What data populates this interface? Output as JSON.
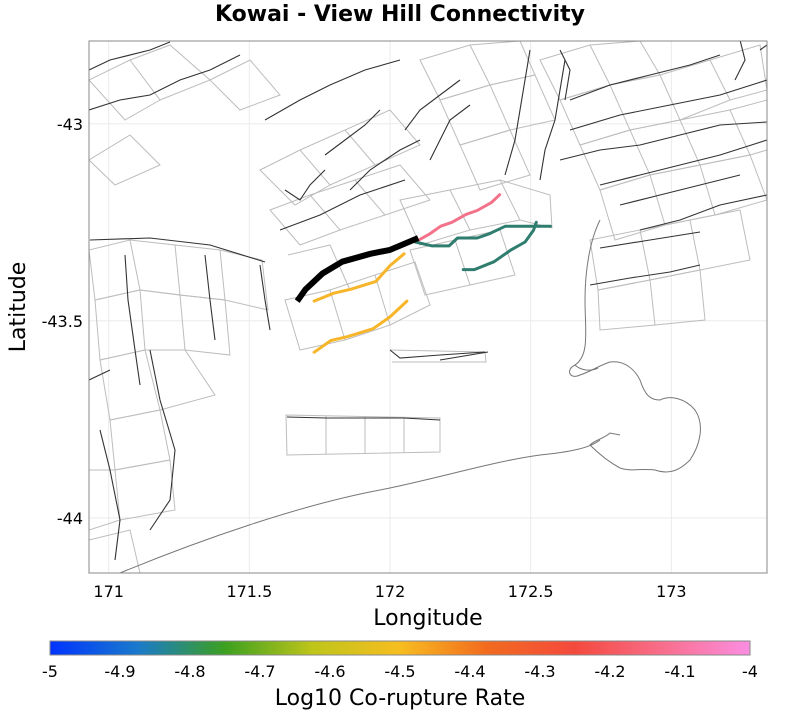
{
  "title": "Kowai - View Hill Connectivity",
  "map": {
    "xlabel": "Longitude",
    "ylabel": "Latitude",
    "xlim": [
      170.93,
      173.34
    ],
    "ylim": [
      -44.14,
      -42.79
    ],
    "x_ticks": [
      171,
      171.5,
      172,
      172.5,
      173
    ],
    "x_tick_labels": [
      "171",
      "171.5",
      "172",
      "172.5",
      "173"
    ],
    "y_ticks": [
      -43,
      -43.5,
      -44
    ],
    "y_tick_labels": [
      "-43",
      "-43.5",
      "-44"
    ],
    "grid": true,
    "colors": {
      "fault_trace": "#333333",
      "fault_outline": "#bdbdbd",
      "coastline": "#777777",
      "source_rupture": "#000000"
    }
  },
  "colorbar": {
    "label": "Log10 Co-rupture Rate",
    "min": -5,
    "max": -4,
    "ticks": [
      -5,
      -4.9,
      -4.8,
      -4.7,
      -4.6,
      -4.5,
      -4.4,
      -4.3,
      -4.2,
      -4.1,
      -4
    ],
    "tick_labels": [
      "-5",
      "-4.9",
      "-4.8",
      "-4.7",
      "-4.6",
      "-4.5",
      "-4.4",
      "-4.3",
      "-4.2",
      "-4.1",
      "-4"
    ],
    "stops": [
      "#0033ff",
      "#1a7acc",
      "#3ca020",
      "#bfc51a",
      "#f7bd20",
      "#f26a1e",
      "#f44a3e",
      "#f86e8c",
      "#fa8ee2"
    ]
  },
  "source_fault": {
    "name": "Kowai - View Hill",
    "points": [
      [
        171.67,
        -43.45
      ],
      [
        171.7,
        -43.42
      ],
      [
        171.76,
        -43.38
      ],
      [
        171.83,
        -43.35
      ],
      [
        171.93,
        -43.33
      ],
      [
        172.0,
        -43.32
      ],
      [
        172.1,
        -43.29
      ]
    ]
  },
  "connected_faults": [
    {
      "log10_rate": -4.5,
      "points": [
        [
          171.73,
          -43.45
        ],
        [
          171.8,
          -43.43
        ],
        [
          171.86,
          -43.42
        ],
        [
          171.95,
          -43.4
        ],
        [
          172.0,
          -43.36
        ],
        [
          172.05,
          -43.33
        ]
      ]
    },
    {
      "log10_rate": -4.5,
      "points": [
        [
          171.73,
          -43.58
        ],
        [
          171.79,
          -43.55
        ],
        [
          171.85,
          -43.54
        ],
        [
          171.94,
          -43.52
        ],
        [
          172.0,
          -43.49
        ],
        [
          172.06,
          -43.45
        ]
      ]
    },
    {
      "log10_rate": -4.1,
      "points": [
        [
          172.09,
          -43.3
        ],
        [
          172.14,
          -43.28
        ],
        [
          172.18,
          -43.26
        ],
        [
          172.22,
          -43.25
        ],
        [
          172.27,
          -43.23
        ],
        [
          172.31,
          -43.22
        ],
        [
          172.36,
          -43.2
        ],
        [
          172.39,
          -43.18
        ]
      ]
    },
    {
      "log10_rate": -4.85,
      "points": [
        [
          172.09,
          -43.3
        ],
        [
          172.15,
          -43.31
        ],
        [
          172.21,
          -43.31
        ],
        [
          172.24,
          -43.29
        ],
        [
          172.31,
          -43.29
        ],
        [
          172.35,
          -43.28
        ],
        [
          172.38,
          -43.27
        ],
        [
          172.41,
          -43.26
        ],
        [
          172.48,
          -43.26
        ],
        [
          172.52,
          -43.26
        ],
        [
          172.57,
          -43.26
        ]
      ]
    },
    {
      "log10_rate": -4.85,
      "points": [
        [
          172.26,
          -43.37
        ],
        [
          172.3,
          -43.37
        ],
        [
          172.37,
          -43.35
        ],
        [
          172.43,
          -43.32
        ],
        [
          172.48,
          -43.3
        ],
        [
          172.51,
          -43.27
        ],
        [
          172.52,
          -43.25
        ]
      ]
    }
  ]
}
